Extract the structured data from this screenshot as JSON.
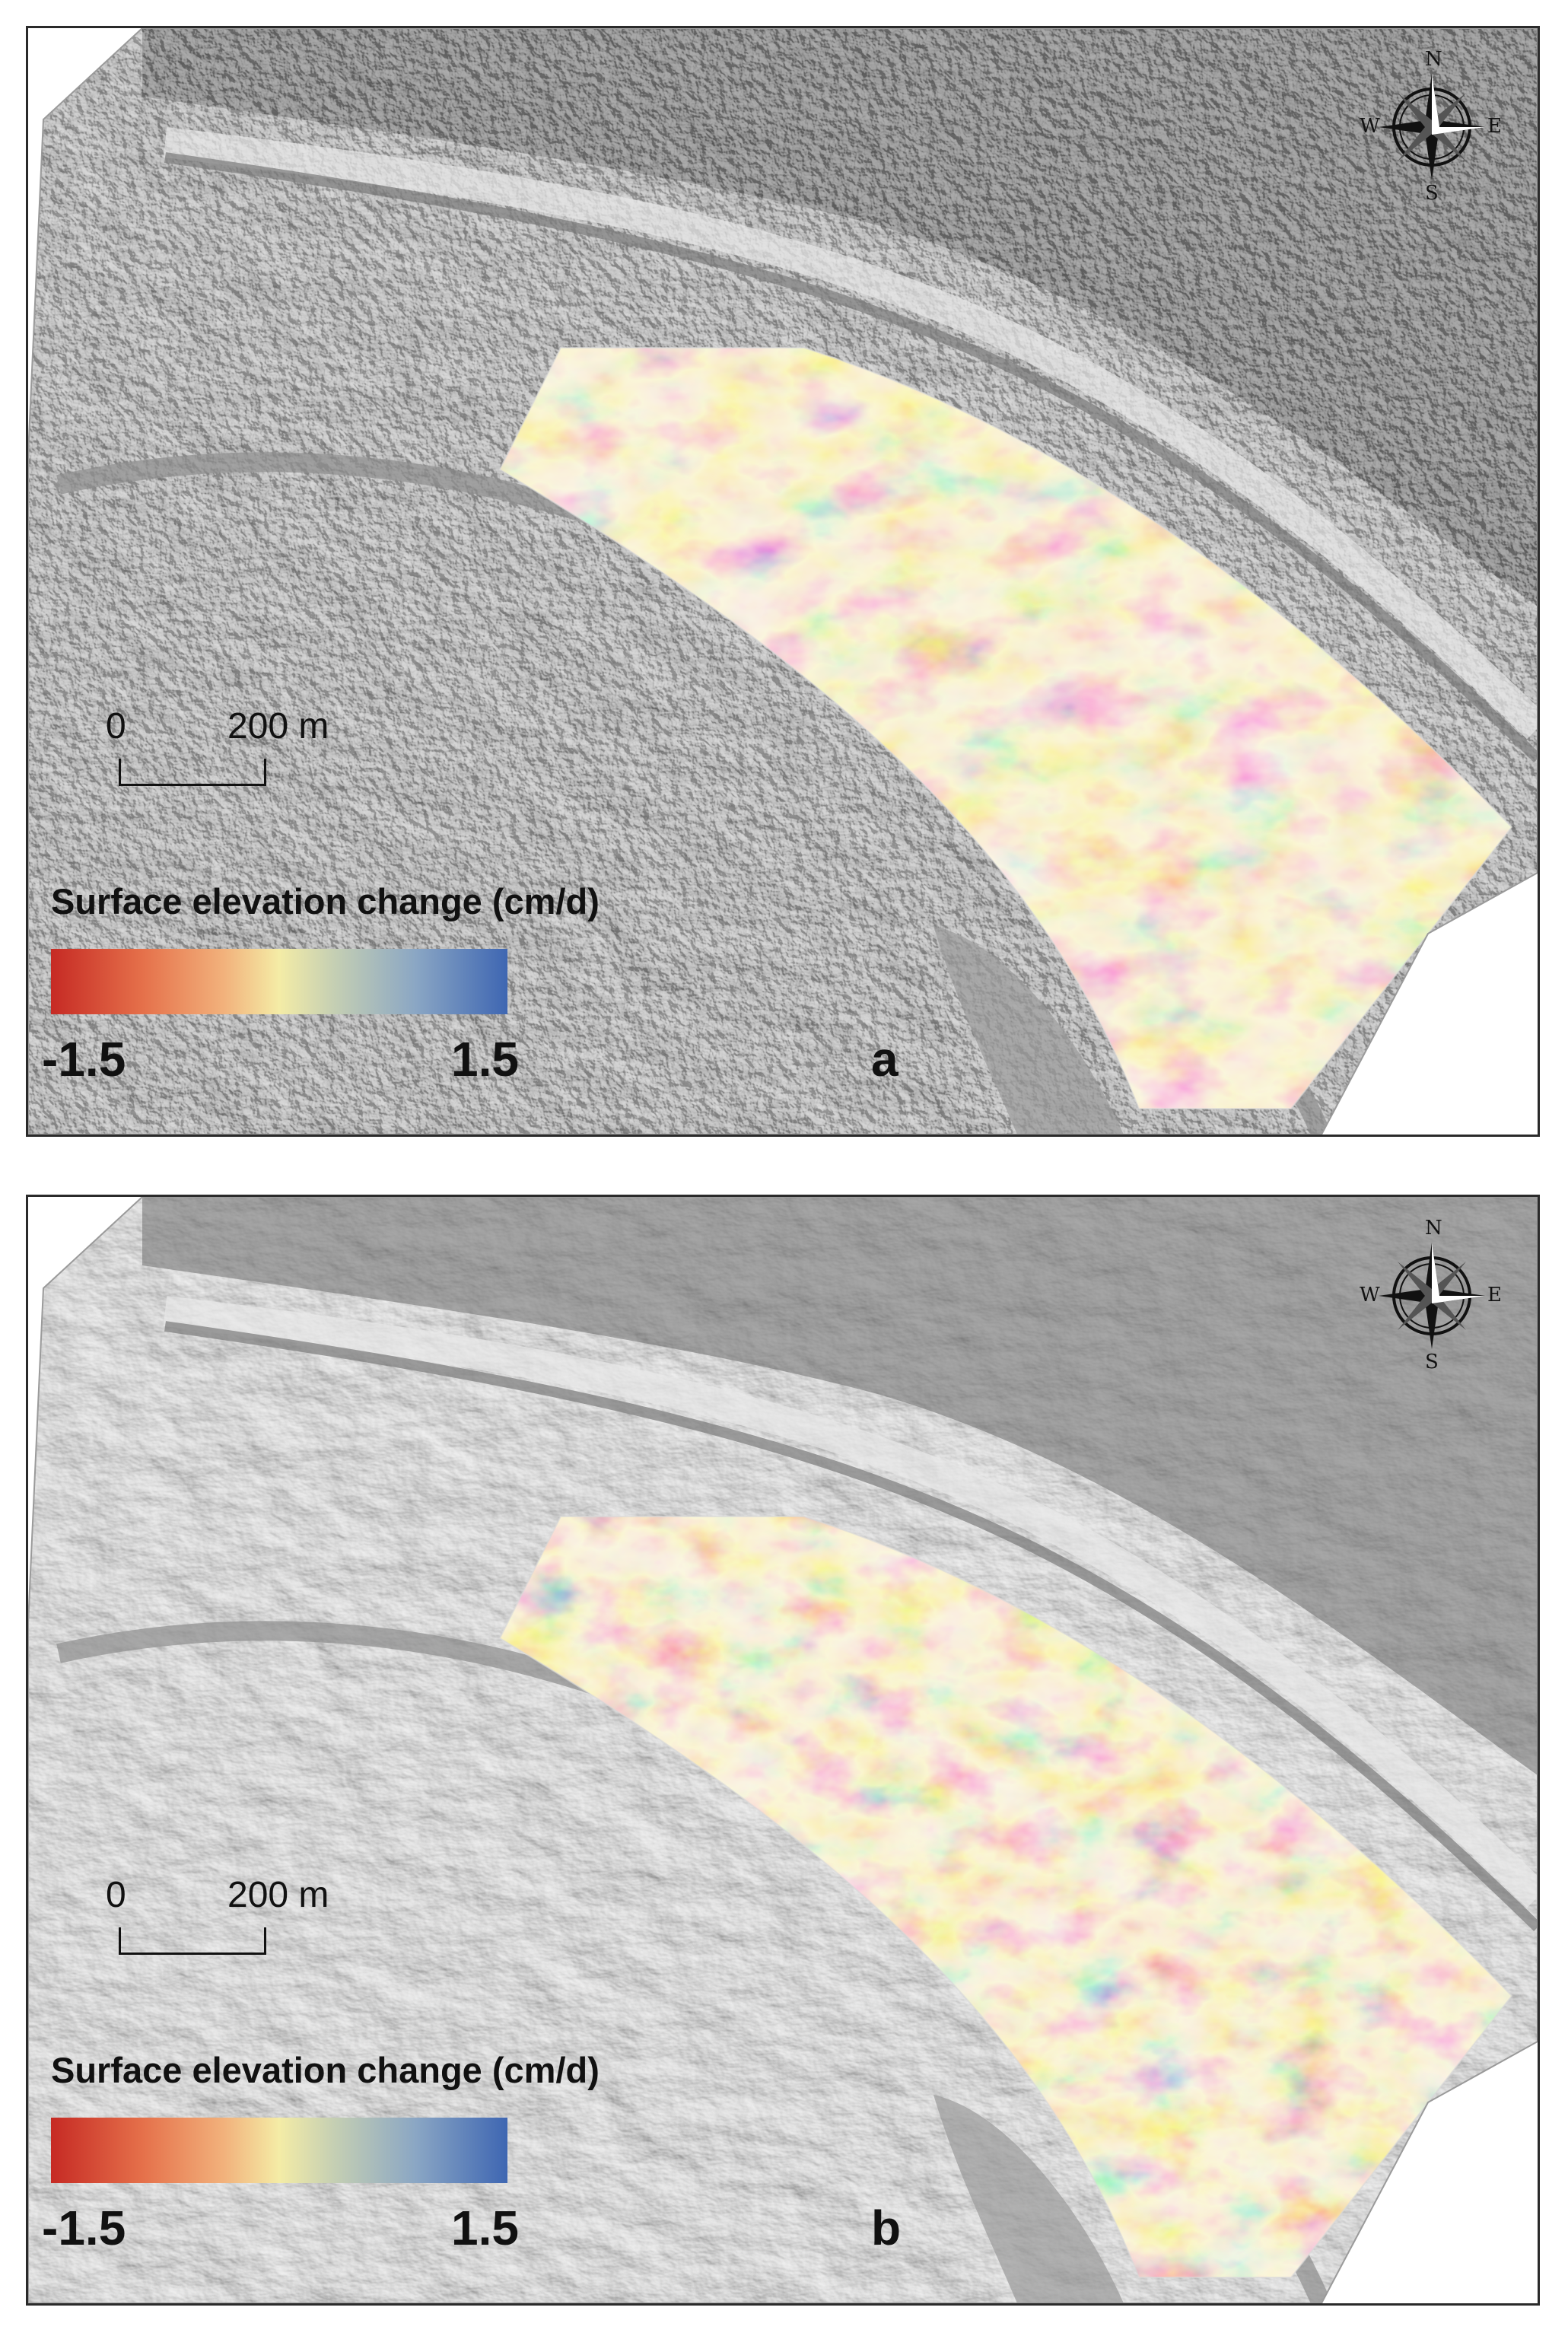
{
  "panels": [
    {
      "id": "a",
      "letter": "a",
      "scale_bar": {
        "start_label": "0",
        "end_label": "200 m"
      },
      "legend": {
        "title": "Surface elevation change (cm/d)",
        "min_label": "-1.5",
        "max_label": "1.5",
        "colors": [
          "#c62a24",
          "#f4eca6",
          "#3e66b2"
        ]
      },
      "compass": {
        "n": "N",
        "s": "S",
        "e": "E",
        "w": "W"
      }
    },
    {
      "id": "b",
      "letter": "b",
      "scale_bar": {
        "start_label": "0",
        "end_label": "200 m"
      },
      "legend": {
        "title": "Surface elevation change (cm/d)",
        "min_label": "-1.5",
        "max_label": "1.5",
        "colors": [
          "#c62a24",
          "#f4eca6",
          "#3e66b2"
        ]
      },
      "compass": {
        "n": "N",
        "s": "S",
        "e": "E",
        "w": "W"
      }
    }
  ],
  "icons": [
    "compass-rose-icon"
  ]
}
